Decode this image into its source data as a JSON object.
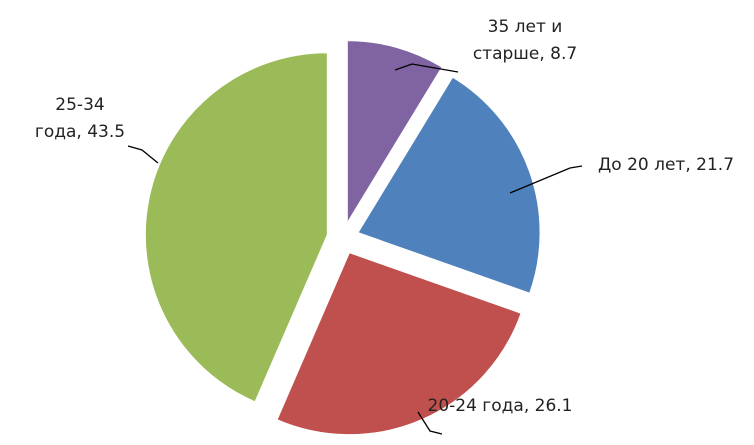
{
  "chart_data": {
    "type": "pie",
    "categories": [
      "35 лет и старше",
      "До 20 лет",
      "20-24 года",
      "25-34 года"
    ],
    "values": [
      8.7,
      21.7,
      26.1,
      43.5
    ],
    "colors": [
      "#8064a2",
      "#4f81bd",
      "#c0504d",
      "#9bbb59"
    ],
    "label_separator": ", "
  }
}
